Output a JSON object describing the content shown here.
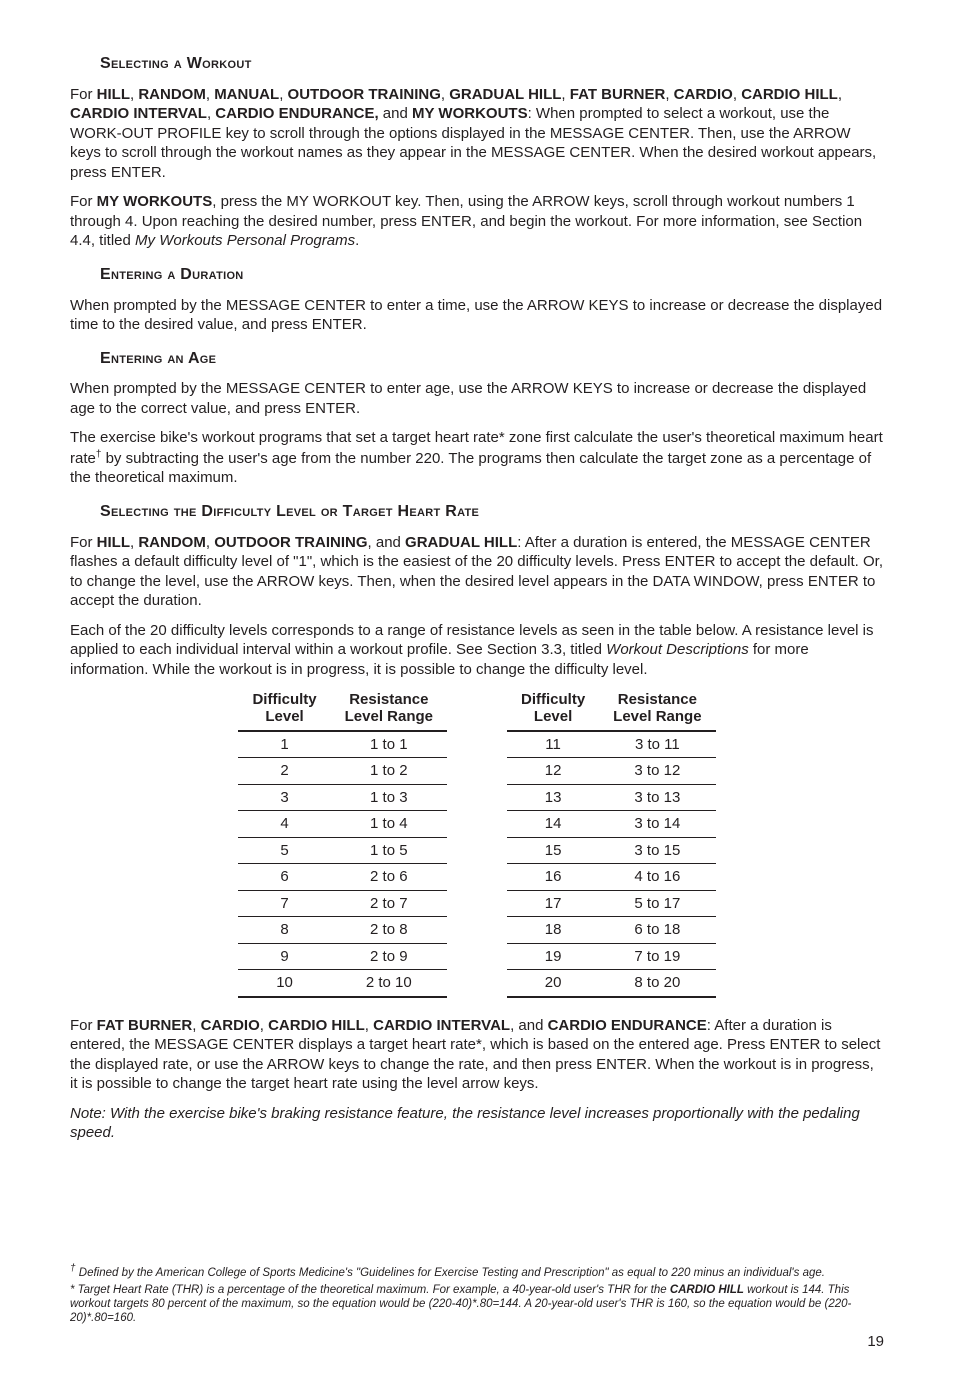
{
  "headings": {
    "selecting_workout": "Selecting a Workout",
    "entering_duration": "Entering a Duration",
    "entering_age": "Entering an Age",
    "selecting_difficulty": "Selecting the Difficulty Level or Target Heart Rate"
  },
  "p1": {
    "t1": "For ",
    "b1": "HILL",
    "t2": ", ",
    "b2": "RANDOM",
    "t3": ", ",
    "b3": "MANUAL",
    "t4": ", ",
    "b4": "OUTDOOR TRAINING",
    "t5": ", ",
    "b5": "GRADUAL HILL",
    "t6": ", ",
    "b6": "FAT BURNER",
    "t7": ", ",
    "b7": "CARDIO",
    "t8": ",  ",
    "b8": "CARDIO HILL",
    "t9": ", ",
    "b9": "CARDIO INTERVAL",
    "t10": ", ",
    "b10": "CARDIO ENDURANCE,",
    "t11": " and ",
    "b11": "MY WORKOUTS",
    "t12": ": When prompted to select a workout, use the WORK-OUT PROFILE key to scroll through the options displayed in the MESSAGE CENTER. Then, use the ARROW keys to scroll through the workout names as they appear in the MESSAGE CENTER. When the desired workout appears, press ENTER."
  },
  "p2": {
    "t1": "For ",
    "b1": "MY WORKOUTS",
    "t2": ", press the MY WORKOUT key. Then, using the ARROW keys, scroll through workout numbers 1 through 4. Upon reaching the desired number, press ENTER, and begin the workout. For more information, see Section 4.4, titled ",
    "i1": "My Workouts Personal Programs",
    "t3": "."
  },
  "p3": "When prompted by the MESSAGE CENTER to enter a time, use the ARROW KEYS to increase or decrease the displayed time to the desired value, and press ENTER.",
  "p4": "When prompted by the MESSAGE CENTER to enter age, use the ARROW KEYS to increase or decrease the displayed age to the correct value, and press ENTER.",
  "p5": {
    "t1": "The exercise bike's workout programs that set a target heart rate* zone first calculate the user's theoretical maximum heart rate",
    "sup": "†",
    "t2": " by subtracting the user's age from the number 220. The programs then calculate the target zone as a percentage of the theoretical maximum."
  },
  "p6": {
    "t1": "For ",
    "b1": "HILL",
    "t2": ", ",
    "b2": "RANDOM",
    "t3": ", ",
    "b3": "OUTDOOR TRAINING",
    "t4": ", and ",
    "b4": "GRADUAL HILL",
    "t5": ": After a duration is entered, the MESSAGE CENTER flashes a default difficulty level of \"1\", which is the easiest of the 20 difficulty levels. Press ENTER to accept the default. Or, to change the level, use the ARROW keys. Then, when the desired level appears in the DATA WINDOW, press ENTER to accept the duration."
  },
  "p7": {
    "t1": "Each of the 20 difficulty levels corresponds to a range of resistance levels as seen in the table below. A resistance level is applied to each individual interval within a workout profile. See Section 3.3, titled ",
    "i1": "Workout Descriptions",
    "t2": " for more information. While the workout is in progress, it is possible to change the difficulty level."
  },
  "table": {
    "headers": {
      "c1a": "Difficulty",
      "c1b": "Level",
      "c2a": "Resistance",
      "c2b": "Level Range"
    },
    "left": [
      {
        "d": "1",
        "r": "1 to 1"
      },
      {
        "d": "2",
        "r": "1 to 2"
      },
      {
        "d": "3",
        "r": "1 to 3"
      },
      {
        "d": "4",
        "r": "1 to 4"
      },
      {
        "d": "5",
        "r": "1 to 5"
      },
      {
        "d": "6",
        "r": "2 to 6"
      },
      {
        "d": "7",
        "r": "2 to 7"
      },
      {
        "d": "8",
        "r": "2 to 8"
      },
      {
        "d": "9",
        "r": "2 to 9"
      },
      {
        "d": "10",
        "r": "2 to 10"
      }
    ],
    "right": [
      {
        "d": "11",
        "r": "3 to 11"
      },
      {
        "d": "12",
        "r": "3 to 12"
      },
      {
        "d": "13",
        "r": "3 to 13"
      },
      {
        "d": "14",
        "r": "3 to 14"
      },
      {
        "d": "15",
        "r": "3 to 15"
      },
      {
        "d": "16",
        "r": "4 to 16"
      },
      {
        "d": "17",
        "r": "5 to 17"
      },
      {
        "d": "18",
        "r": "6 to 18"
      },
      {
        "d": "19",
        "r": "7 to 19"
      },
      {
        "d": "20",
        "r": "8 to 20"
      }
    ]
  },
  "p8": {
    "t1": "For ",
    "b1": "FAT BURNER",
    "t2": ", ",
    "b2": "CARDIO",
    "t3": ", ",
    "b3": "CARDIO HILL",
    "t4": ", ",
    "b4": "CARDIO INTERVAL",
    "t5": ", and ",
    "b5": "CARDIO ENDURANCE",
    "t6": ": After a duration is entered, the MESSAGE CENTER displays a target heart rate*, which is based on the entered age. Press ENTER to select the displayed rate, or use the ARROW keys to change the rate, and then press ENTER. When the workout is in progress, it is possible to change the target heart rate using the level arrow keys."
  },
  "note": "Note: With the exercise bike's braking resistance feature, the resistance level increases proportionally with the pedaling speed.",
  "fn1": {
    "sup": "†",
    "t": " Defined by the American College of Sports Medicine's \"Guidelines for Exercise Testing and Prescription\" as equal to 220 minus an individual's age."
  },
  "fn2": {
    "t1": "* Target Heart Rate (THR) is a percentage of the theoretical maximum. For example, a 40-year-old user's THR for the ",
    "b1": "CARDIO HILL",
    "t2": " workout is 144. This workout targets 80 percent of the maximum, so the equation would be (220-40)*.80=144. A 20-year-old user's THR is 160, so the equation would be (220-20)*.80=160."
  },
  "pagenum": "19"
}
